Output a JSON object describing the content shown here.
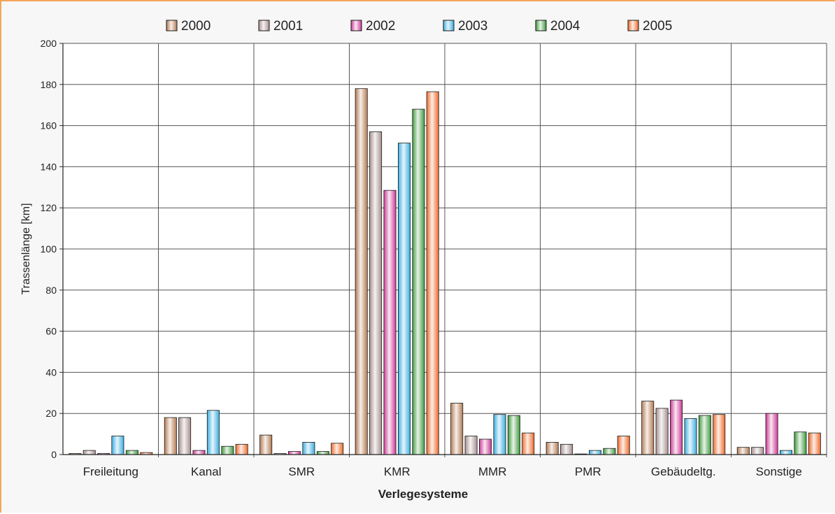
{
  "chart_data": {
    "type": "bar",
    "title": "",
    "xlabel": "Verlegesysteme",
    "ylabel": "Trassenlänge [km]",
    "ylim": [
      0,
      200
    ],
    "yticks": [
      0,
      20,
      40,
      60,
      80,
      100,
      120,
      140,
      160,
      180,
      200
    ],
    "grid": true,
    "legend_position": "top",
    "categories": [
      "Freileitung",
      "Kanal",
      "SMR",
      "KMR",
      "MMR",
      "PMR",
      "Gebäudeltg.",
      "Sonstige"
    ],
    "series": [
      {
        "name": "2000",
        "color": "#b47a52",
        "values": [
          0.5,
          18,
          9.5,
          178,
          25,
          6,
          26,
          3.5
        ]
      },
      {
        "name": "2001",
        "color": "#a89090",
        "values": [
          2,
          18,
          0.5,
          157,
          9,
          5,
          22.5,
          3.5
        ]
      },
      {
        "name": "2002",
        "color": "#cc3a96",
        "values": [
          0.5,
          2,
          1.5,
          128.5,
          7.5,
          0.3,
          26.5,
          20
        ]
      },
      {
        "name": "2003",
        "color": "#3aaee0",
        "values": [
          9,
          21.5,
          6,
          151.5,
          19.5,
          2,
          17.5,
          2
        ]
      },
      {
        "name": "2004",
        "color": "#3f9a3c",
        "values": [
          2,
          4,
          1.5,
          168,
          19,
          3,
          19,
          11
        ]
      },
      {
        "name": "2005",
        "color": "#ee6a2a",
        "values": [
          1,
          5,
          5.5,
          176.5,
          10.5,
          9,
          19.5,
          10.5
        ]
      }
    ]
  }
}
